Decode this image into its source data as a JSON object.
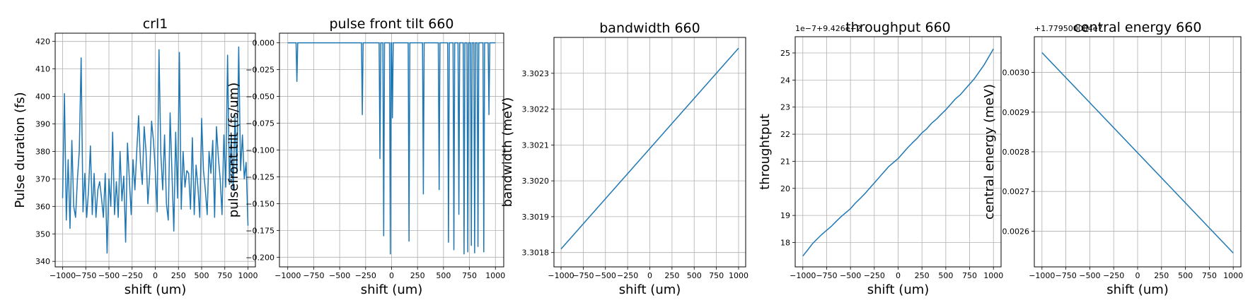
{
  "chart_data": [
    {
      "type": "line",
      "title": "crl1",
      "xlabel": "shift (um)",
      "ylabel": "Pulse duration (fs)",
      "xlim": [
        -1080,
        1080
      ],
      "ylim": [
        338,
        423
      ],
      "xticks": [
        -1000,
        -750,
        -500,
        -250,
        0,
        250,
        500,
        750,
        1000
      ],
      "xtick_labels": [
        "−1000",
        "−750",
        "−500",
        "−250",
        "0",
        "250",
        "500",
        "750",
        "1000"
      ],
      "yticks": [
        340,
        350,
        360,
        370,
        380,
        390,
        400,
        410,
        420
      ],
      "ytick_labels": [
        "340",
        "350",
        "360",
        "370",
        "380",
        "390",
        "400",
        "410",
        "420"
      ],
      "grid": true,
      "series_color": "#1f77b4",
      "series": [
        {
          "x": [
            -1000,
            -980,
            -960,
            -940,
            -920,
            -900,
            -880,
            -860,
            -840,
            -820,
            -800,
            -780,
            -760,
            -740,
            -720,
            -700,
            -680,
            -660,
            -640,
            -620,
            -600,
            -580,
            -560,
            -540,
            -520,
            -500,
            -480,
            -460,
            -440,
            -420,
            -400,
            -380,
            -360,
            -340,
            -320,
            -300,
            -280,
            -260,
            -240,
            -220,
            -200,
            -180,
            -160,
            -140,
            -120,
            -100,
            -80,
            -60,
            -40,
            -20,
            0,
            20,
            40,
            60,
            80,
            100,
            120,
            140,
            160,
            180,
            200,
            220,
            240,
            260,
            280,
            300,
            320,
            340,
            360,
            380,
            400,
            420,
            440,
            460,
            480,
            500,
            520,
            540,
            560,
            580,
            600,
            620,
            640,
            660,
            680,
            700,
            720,
            740,
            760,
            780,
            800,
            820,
            840,
            860,
            880,
            900,
            920,
            940,
            960,
            980,
            1000
          ],
          "y": [
            363,
            401,
            355,
            377,
            352,
            384,
            360,
            356,
            370,
            380,
            414,
            358,
            372,
            356,
            366,
            382,
            357,
            372,
            356,
            366,
            369,
            363,
            356,
            372,
            343,
            370,
            360,
            387,
            357,
            369,
            356,
            380,
            362,
            371,
            347,
            383,
            370,
            357,
            377,
            366,
            380,
            393,
            376,
            368,
            389,
            380,
            361,
            372,
            391,
            384,
            373,
            358,
            417,
            379,
            366,
            386,
            361,
            355,
            394,
            372,
            351,
            387,
            363,
            416,
            359,
            380,
            367,
            373,
            372,
            359,
            385,
            357,
            375,
            367,
            356,
            392,
            373,
            366,
            357,
            380,
            372,
            384,
            356,
            389,
            378,
            370,
            357,
            386,
            367,
            415,
            368,
            386,
            366,
            393,
            372,
            418,
            373,
            386,
            370,
            376,
            353
          ]
        }
      ]
    },
    {
      "type": "line",
      "title": "pulse front tilt 660",
      "xlabel": "shift (um)",
      "ylabel": "pulsefront tilt (fs/um)",
      "xlim": [
        -1080,
        1080
      ],
      "ylim": [
        -0.209,
        0.009
      ],
      "xticks": [
        -1000,
        -750,
        -500,
        -250,
        0,
        250,
        500,
        750,
        1000
      ],
      "xtick_labels": [
        "−1000",
        "−750",
        "−500",
        "−250",
        "0",
        "250",
        "500",
        "750",
        "1000"
      ],
      "yticks": [
        -0.2,
        -0.175,
        -0.15,
        -0.125,
        -0.1,
        -0.075,
        -0.05,
        -0.025,
        0
      ],
      "ytick_labels": [
        "−0.200",
        "−0.175",
        "−0.150",
        "−0.125",
        "−0.100",
        "−0.075",
        "−0.050",
        "−0.025",
        "0.000"
      ],
      "grid": true,
      "series_color": "#1f77b4",
      "series": [
        {
          "x": [
            -1000,
            -920,
            -912,
            -904,
            -290,
            -282,
            -274,
            -120,
            -112,
            -104,
            -84,
            -76,
            -68,
            -20,
            -12,
            -4,
            0,
            8,
            16,
            160,
            168,
            176,
            298,
            306,
            314,
            450,
            458,
            466,
            540,
            548,
            556,
            592,
            600,
            608,
            640,
            648,
            656,
            690,
            698,
            706,
            726,
            734,
            742,
            760,
            768,
            776,
            792,
            800,
            808,
            824,
            832,
            840,
            880,
            888,
            896,
            930,
            938,
            946,
            1000
          ],
          "y": [
            0,
            0,
            -0.036,
            0,
            0,
            -0.067,
            0,
            0,
            -0.108,
            0,
            0,
            -0.18,
            0,
            0,
            -0.197,
            0,
            0,
            -0.07,
            0,
            0,
            -0.185,
            0,
            0,
            -0.141,
            0,
            0,
            -0.137,
            0,
            0,
            -0.186,
            0,
            0,
            -0.193,
            0,
            0,
            -0.16,
            0,
            0,
            -0.197,
            0,
            0,
            -0.195,
            0,
            0,
            -0.189,
            0,
            0,
            -0.196,
            0,
            0,
            -0.19,
            0,
            0,
            -0.195,
            0,
            0,
            -0.067,
            0,
            0
          ]
        }
      ]
    },
    {
      "type": "line",
      "title": "bandwidth 660",
      "xlabel": "shift (um)",
      "ylabel": "bandwidth (meV)",
      "xlim": [
        -1080,
        1080
      ],
      "ylim": [
        3.30176,
        3.3024
      ],
      "xticks": [
        -1000,
        -750,
        -500,
        -250,
        0,
        250,
        500,
        750,
        1000
      ],
      "xtick_labels": [
        "−1000",
        "−750",
        "−500",
        "−250",
        "0",
        "250",
        "500",
        "750",
        "1000"
      ],
      "yticks": [
        3.3018,
        3.3019,
        3.302,
        3.3021,
        3.3022,
        3.3023
      ],
      "ytick_labels": [
        "3.3018",
        "3.3019",
        "3.3020",
        "3.3021",
        "3.3022",
        "3.3023"
      ],
      "grid": true,
      "series_color": "#1f77b4",
      "series": [
        {
          "x": [
            -1000,
            1000
          ],
          "y": [
            3.30181,
            3.30237
          ]
        }
      ]
    },
    {
      "type": "line",
      "title": "throughput 660",
      "xlabel": "shift (um)",
      "ylabel": "throughtput",
      "offset_text": "1e−7+9.426e−2",
      "xlim": [
        -1080,
        1080
      ],
      "ylim": [
        17.1,
        25.6
      ],
      "xticks": [
        -1000,
        -750,
        -500,
        -250,
        0,
        250,
        500,
        750,
        1000
      ],
      "xtick_labels": [
        "−1000",
        "−750",
        "−500",
        "−250",
        "0",
        "250",
        "500",
        "750",
        "1000"
      ],
      "yticks": [
        18,
        19,
        20,
        21,
        22,
        23,
        24,
        25
      ],
      "ytick_labels": [
        "18",
        "19",
        "20",
        "21",
        "22",
        "23",
        "24",
        "25"
      ],
      "grid": true,
      "series_color": "#1f77b4",
      "series": [
        {
          "x": [
            -1000,
            -950,
            -900,
            -850,
            -800,
            -750,
            -700,
            -650,
            -600,
            -550,
            -500,
            -450,
            -400,
            -350,
            -300,
            -250,
            -200,
            -150,
            -100,
            -50,
            0,
            50,
            100,
            150,
            200,
            250,
            300,
            350,
            400,
            450,
            500,
            550,
            600,
            650,
            700,
            750,
            800,
            850,
            900,
            950,
            1000
          ],
          "y": [
            17.5,
            17.72,
            17.95,
            18.13,
            18.3,
            18.45,
            18.6,
            18.78,
            18.95,
            19.1,
            19.25,
            19.45,
            19.62,
            19.8,
            20.0,
            20.2,
            20.4,
            20.6,
            20.8,
            20.95,
            21.1,
            21.3,
            21.5,
            21.68,
            21.85,
            22.05,
            22.2,
            22.4,
            22.55,
            22.73,
            22.9,
            23.1,
            23.3,
            23.45,
            23.65,
            23.85,
            24.05,
            24.3,
            24.55,
            24.85,
            25.15
          ]
        }
      ]
    },
    {
      "type": "line",
      "title": "central energy 660",
      "xlabel": "shift (um)",
      "ylabel": "central energy (meV)",
      "offset_text": "+1.779500004e7",
      "xlim": [
        -1080,
        1080
      ],
      "ylim": [
        0.00251,
        0.00309
      ],
      "xticks": [
        -1000,
        -750,
        -500,
        -250,
        0,
        250,
        500,
        750,
        1000
      ],
      "xtick_labels": [
        "−1000",
        "−750",
        "−500",
        "−250",
        "0",
        "250",
        "500",
        "750",
        "1000"
      ],
      "yticks": [
        0.0026,
        0.0027,
        0.0028,
        0.0029,
        0.003
      ],
      "ytick_labels": [
        "0.0026",
        "0.0027",
        "0.0028",
        "0.0029",
        "0.0030"
      ],
      "grid": true,
      "series_color": "#1f77b4",
      "series": [
        {
          "x": [
            -1000,
            1000
          ],
          "y": [
            0.00305,
            0.002545
          ]
        }
      ]
    }
  ]
}
